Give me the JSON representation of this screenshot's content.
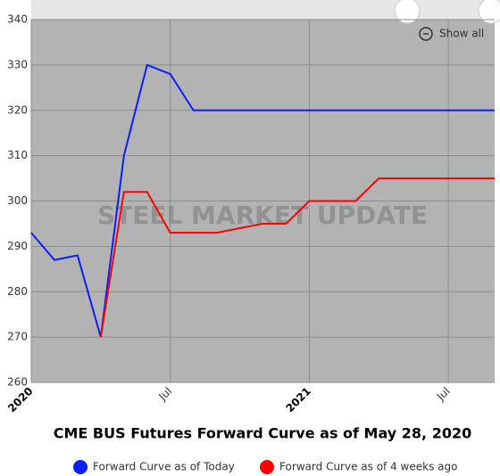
{
  "chart_data": {
    "type": "line",
    "title": "CME BUS Futures Forward Curve as of May 28, 2020",
    "watermark": "STEEL MARKET UPDATE",
    "zoom_button": "Show all",
    "x": [
      "2020-01",
      "2020-02",
      "2020-03",
      "2020-04",
      "2020-05",
      "2020-06",
      "2020-07",
      "2020-08",
      "2020-09",
      "2020-10",
      "2020-11",
      "2020-12",
      "2021-01",
      "2021-02",
      "2021-03",
      "2021-04",
      "2021-05",
      "2021-06",
      "2021-07",
      "2021-08",
      "2021-09"
    ],
    "series": [
      {
        "name": "Forward Curve as of Today",
        "color": "#0a1fff",
        "values": [
          293,
          287,
          288,
          270,
          310,
          330,
          328,
          320,
          320,
          320,
          320,
          320,
          320,
          320,
          320,
          320,
          320,
          320,
          320,
          320,
          320
        ]
      },
      {
        "name": "Forward Curve as of 4 weeks ago",
        "color": "#ff0000",
        "values": [
          null,
          null,
          null,
          270,
          302,
          302,
          293,
          293,
          293,
          294,
          295,
          295,
          300,
          300,
          300,
          305,
          305,
          305,
          305,
          305,
          305
        ]
      }
    ],
    "xlim": [
      "2020-01",
      "2021-09"
    ],
    "xticks": [
      {
        "value": "2020-01",
        "label": "2020"
      },
      {
        "value": "2020-07",
        "label": "Jul"
      },
      {
        "value": "2021-01",
        "label": "2021"
      },
      {
        "value": "2021-07",
        "label": "Jul"
      }
    ],
    "ylim": [
      260,
      340
    ],
    "yticks": [
      260,
      270,
      280,
      290,
      300,
      310,
      320,
      330,
      340
    ],
    "grid": true
  }
}
